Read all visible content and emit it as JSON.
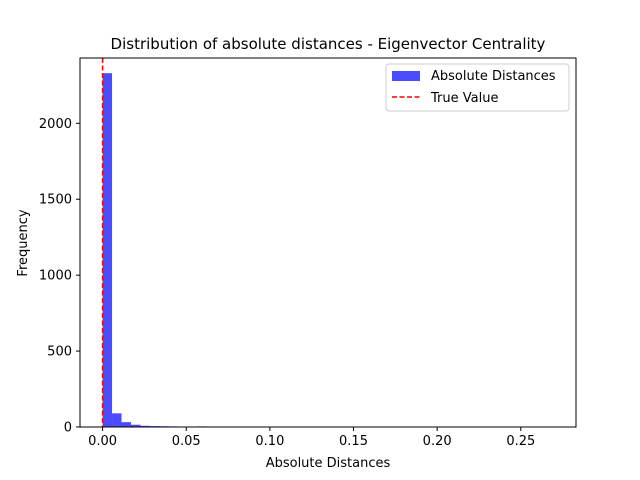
{
  "chart_data": {
    "type": "bar",
    "title": "Distribution of absolute distances - Eigenvector Centrality",
    "xlabel": "Absolute Distances",
    "ylabel": "Frequency",
    "xlim": [
      -0.0135,
      0.283
    ],
    "ylim": [
      0,
      2430
    ],
    "xticks": [
      {
        "value": 0.0,
        "label": "0.00"
      },
      {
        "value": 0.05,
        "label": "0.05"
      },
      {
        "value": 0.1,
        "label": "0.10"
      },
      {
        "value": 0.15,
        "label": "0.15"
      },
      {
        "value": 0.2,
        "label": "0.20"
      },
      {
        "value": 0.25,
        "label": "0.25"
      }
    ],
    "yticks": [
      {
        "value": 0,
        "label": "0"
      },
      {
        "value": 500,
        "label": "500"
      },
      {
        "value": 1000,
        "label": "1000"
      },
      {
        "value": 1500,
        "label": "1500"
      },
      {
        "value": 2000,
        "label": "2000"
      }
    ],
    "bin_start": 0.0,
    "bin_width": 0.00566,
    "counts": [
      2330,
      90,
      32,
      15,
      8,
      6,
      5,
      4,
      2,
      3,
      4,
      2,
      0,
      3,
      0,
      0,
      0,
      0,
      0,
      0,
      0,
      0,
      0,
      0,
      0,
      0,
      0,
      0,
      0,
      0,
      0,
      0,
      0,
      0,
      0,
      0,
      0,
      0,
      0,
      0,
      0,
      0,
      0,
      0,
      0,
      0,
      0,
      0,
      0,
      1
    ],
    "true_value": 0.0,
    "legend_position": "top-right",
    "legend": [
      {
        "label": "Absolute Distances",
        "kind": "patch"
      },
      {
        "label": "True Value",
        "kind": "dashed-line"
      }
    ],
    "colors": {
      "bar": "#0000ff",
      "bar_opacity": 0.7,
      "true_value_line": "#ff0000"
    },
    "grid": false
  }
}
